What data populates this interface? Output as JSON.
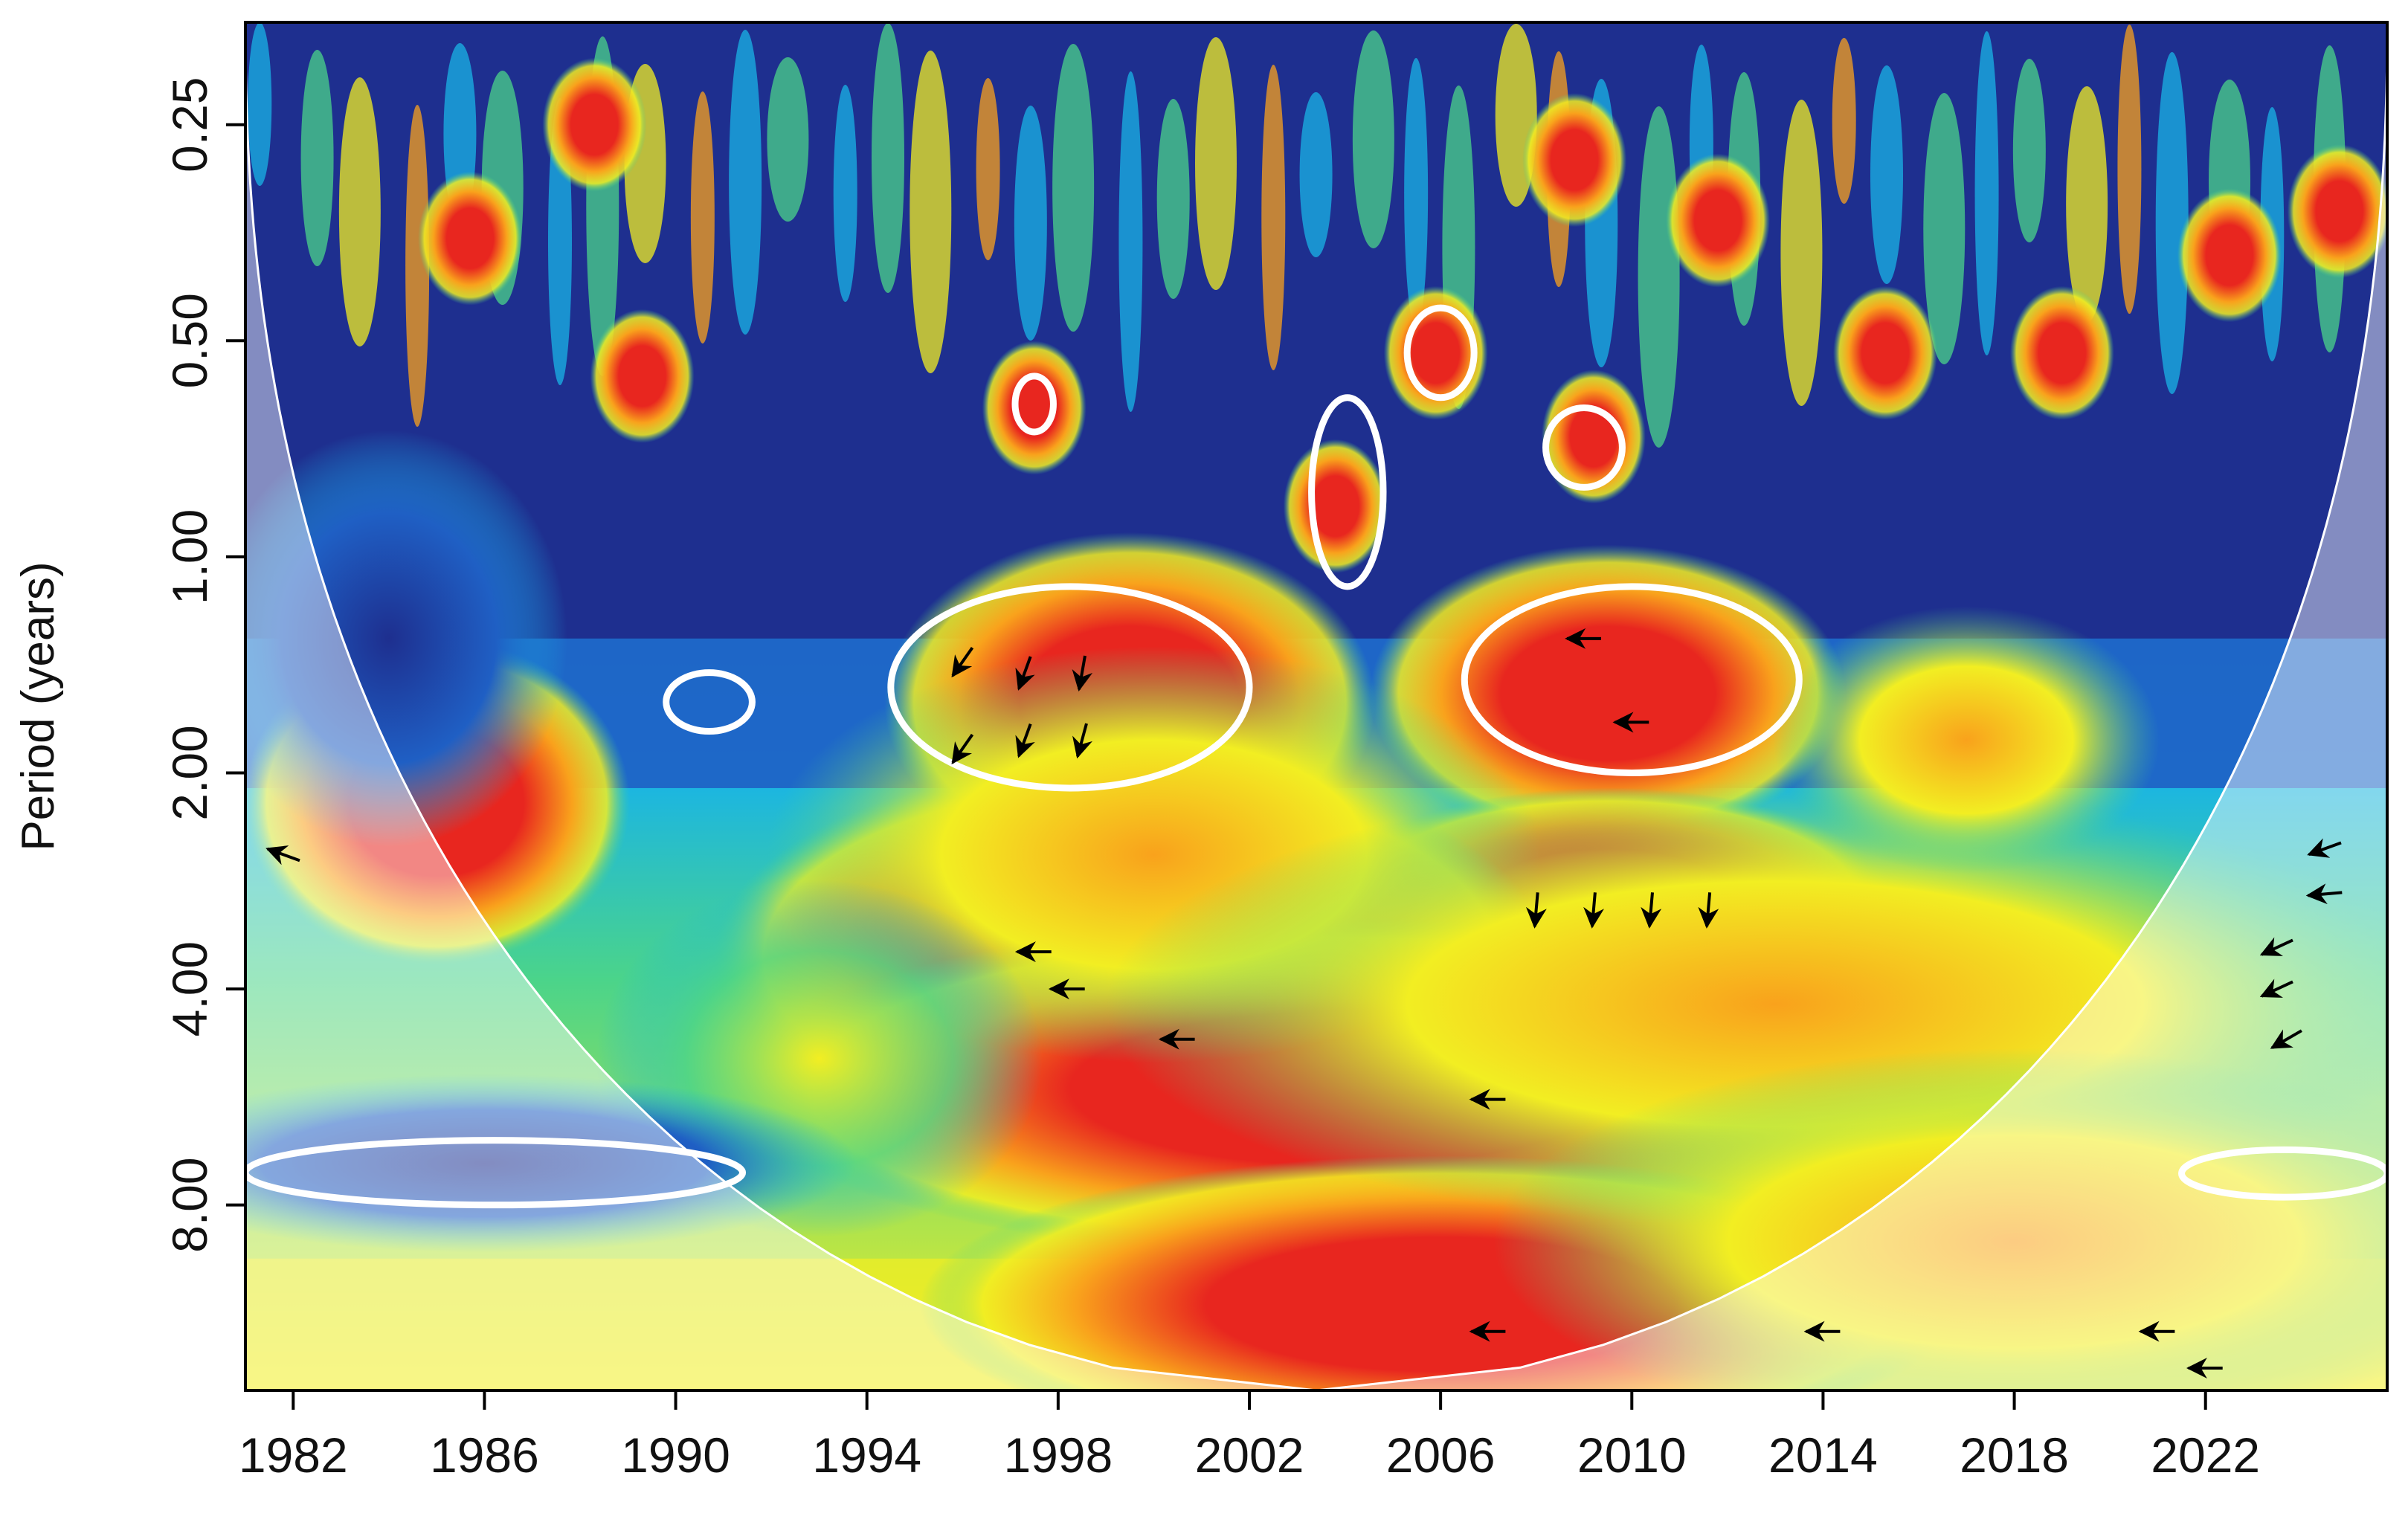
{
  "chart_data": {
    "type": "heatmap",
    "title": "",
    "xlabel": "",
    "ylabel": "Period (years)",
    "x_ticks": [
      "1982",
      "1986",
      "1990",
      "1994",
      "1998",
      "2002",
      "2006",
      "2010",
      "2014",
      "2018",
      "2022"
    ],
    "x_tick_values": [
      1982,
      1986,
      1990,
      1994,
      1998,
      2002,
      2006,
      2010,
      2014,
      2018,
      2022
    ],
    "y_ticks": [
      "0.25",
      "0.50",
      "1.00",
      "2.00",
      "4.00",
      "8.00"
    ],
    "y_tick_values": [
      0.25,
      0.5,
      1,
      2,
      4,
      8
    ],
    "xlim": [
      1981,
      2025.8
    ],
    "ylim_period": [
      0.18,
      14.5
    ],
    "y_scale": "log2",
    "y_reversed": true,
    "grid": false,
    "legend": "none",
    "colormap": [
      "#1e2f8f",
      "#1f5fc4",
      "#19b4e6",
      "#4bd48a",
      "#f2ee22",
      "#f9a21c",
      "#e8261f"
    ],
    "cone_of_influence": true,
    "significant_regions": [
      {
        "x": [
          1994.5,
          2002
        ],
        "period": [
          1.1,
          2.1
        ]
      },
      {
        "x": [
          2006.5,
          2013.5
        ],
        "period": [
          1.1,
          2.0
        ]
      },
      {
        "x": [
          2003.3,
          2004.8
        ],
        "period": [
          0.6,
          1.1
        ]
      },
      {
        "x": [
          2005.3,
          2006.7
        ],
        "period": [
          0.45,
          0.6
        ]
      },
      {
        "x": [
          2008.2,
          2009.8
        ],
        "period": [
          0.62,
          0.8
        ]
      },
      {
        "x": [
          1997.1,
          1997.9
        ],
        "period": [
          0.56,
          0.67
        ]
      },
      {
        "x": [
          1989.8,
          1991.6
        ],
        "period": [
          1.45,
          1.75
        ]
      },
      {
        "x": [
          1981,
          1991.4
        ],
        "period": [
          6.5,
          8.0
        ]
      },
      {
        "x": [
          2021.5,
          2025.8
        ],
        "period": [
          6.7,
          7.8
        ]
      }
    ],
    "phase_arrows": [
      {
        "x": 1996,
        "period": 1.4,
        "angle": 235
      },
      {
        "x": 1997.3,
        "period": 1.45,
        "angle": 250
      },
      {
        "x": 1998.5,
        "period": 1.45,
        "angle": 260
      },
      {
        "x": 1996,
        "period": 1.85,
        "angle": 235
      },
      {
        "x": 1997.3,
        "period": 1.8,
        "angle": 250
      },
      {
        "x": 1998.5,
        "period": 1.8,
        "angle": 255
      },
      {
        "x": 2009,
        "period": 1.3,
        "angle": 180
      },
      {
        "x": 2010,
        "period": 1.7,
        "angle": 180
      },
      {
        "x": 2008,
        "period": 3.1,
        "angle": 265
      },
      {
        "x": 2009.2,
        "period": 3.1,
        "angle": 265
      },
      {
        "x": 2010.4,
        "period": 3.1,
        "angle": 265
      },
      {
        "x": 2011.6,
        "period": 3.1,
        "angle": 265
      },
      {
        "x": 1997.5,
        "period": 3.55,
        "angle": 180
      },
      {
        "x": 1998.2,
        "period": 4.0,
        "angle": 180
      },
      {
        "x": 2000.5,
        "period": 4.7,
        "angle": 180
      },
      {
        "x": 2007,
        "period": 5.7,
        "angle": 180
      },
      {
        "x": 2007,
        "period": 12.0,
        "angle": 180
      },
      {
        "x": 2014,
        "period": 12.0,
        "angle": 180
      },
      {
        "x": 2021,
        "period": 12.0,
        "angle": 180
      },
      {
        "x": 2022,
        "period": 13.5,
        "angle": 180
      },
      {
        "x": 1981.8,
        "period": 2.6,
        "angle": 160
      },
      {
        "x": 2024.5,
        "period": 2.55,
        "angle": 200
      },
      {
        "x": 2024.5,
        "period": 2.95,
        "angle": 185
      },
      {
        "x": 2023.5,
        "period": 3.5,
        "angle": 205
      },
      {
        "x": 2023.5,
        "period": 4.0,
        "angle": 205
      },
      {
        "x": 2023.7,
        "period": 4.7,
        "angle": 210
      }
    ]
  }
}
